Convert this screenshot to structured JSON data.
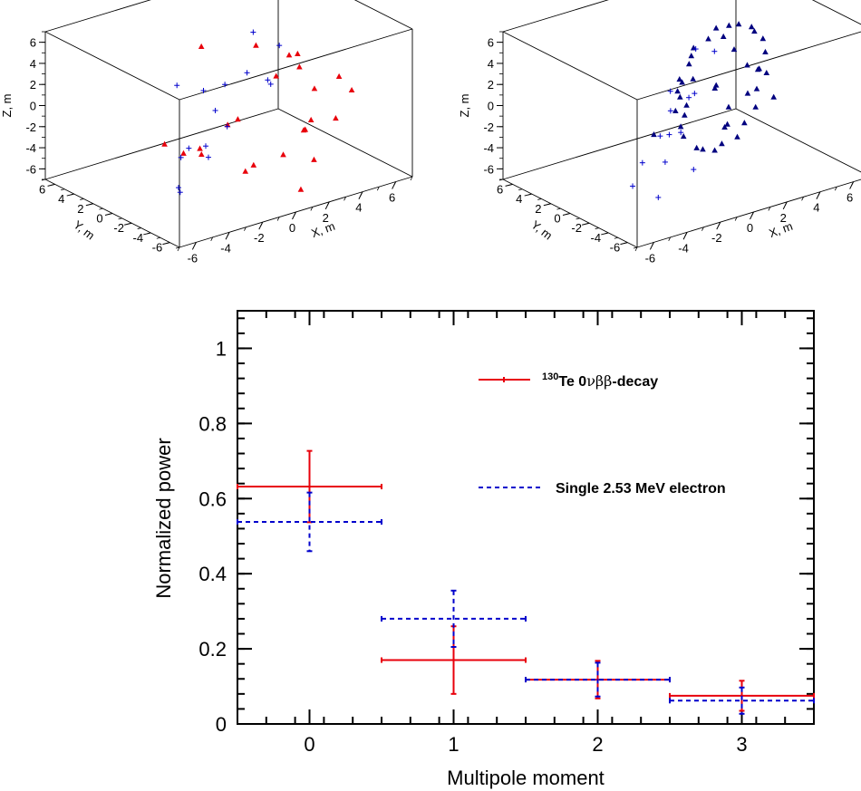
{
  "chart_data": [
    {
      "type": "scatter",
      "projection": "3d",
      "xlabel": "X, m",
      "ylabel": "Y, m",
      "zlabel": "Z, m",
      "xlim": [
        -7,
        7
      ],
      "ylim": [
        -7,
        7
      ],
      "zlim": [
        -7,
        7
      ],
      "xticks": [
        "-6",
        "-4",
        "-2",
        "0",
        "2",
        "4",
        "6"
      ],
      "yticks": [
        "6",
        "4",
        "2",
        "0",
        "-2",
        "-4",
        "-6"
      ],
      "zticks": [
        "6",
        "4",
        "2",
        "0",
        "-2",
        "-4",
        "-6"
      ],
      "series": [
        {
          "marker": "triangle",
          "color": "#e8000b",
          "points": [
            [
              0.5,
              -6.5,
              6.3
            ],
            [
              -0.9,
              -6.5,
              6.1
            ],
            [
              3.4,
              -5.6,
              3.6
            ],
            [
              -2.8,
              -5.8,
              2.6
            ],
            [
              2.9,
              -3.9,
              1.9
            ],
            [
              5.6,
              -3.1,
              0.1
            ],
            [
              -1.8,
              -3.0,
              0.3
            ],
            [
              1.4,
              -0.4,
              5.1
            ],
            [
              -0.5,
              2.0,
              4.8
            ],
            [
              4.2,
              1.0,
              2.2
            ],
            [
              -4.9,
              -1.8,
              -0.6
            ],
            [
              5.4,
              2.2,
              1.2
            ],
            [
              0.7,
              -6.3,
              -5.5
            ],
            [
              -2.0,
              -5.2,
              -3.0
            ],
            [
              2.7,
              -4.2,
              -4.6
            ],
            [
              3.5,
              -2.5,
              -2.0
            ],
            [
              -3.3,
              -1.0,
              -2.6
            ],
            [
              5.1,
              -2.3,
              -2.7
            ],
            [
              1.2,
              -0.5,
              -6.1
            ],
            [
              -1.3,
              0.6,
              -4.4
            ],
            [
              4.5,
              0.0,
              -4.6
            ],
            [
              -0.3,
              2.5,
              -5.2
            ],
            [
              3.9,
              -1.2,
              -3.7
            ],
            [
              1.6,
              -2.9,
              -4.2
            ]
          ]
        },
        {
          "marker": "plus",
          "color": "#0000cc",
          "points": [
            [
              -4.5,
              -6.4,
              4.5
            ],
            [
              -5.4,
              -5.2,
              0.8
            ],
            [
              -3.3,
              -3.6,
              -1.8
            ],
            [
              -2.6,
              -4.1,
              5.0
            ],
            [
              -5.0,
              -3.6,
              -4.3
            ],
            [
              2.5,
              1.8,
              4.8
            ],
            [
              4.3,
              2.2,
              2.5
            ],
            [
              3.8,
              4.7,
              -1.0
            ],
            [
              -2.2,
              1.6,
              2.1
            ],
            [
              1.7,
              5.6,
              -2.1
            ],
            [
              -3.8,
              -1.6,
              -2.5
            ],
            [
              -5.5,
              -4.3,
              -3.3
            ],
            [
              1.8,
              3.3,
              -4.5
            ],
            [
              0.8,
              3.8,
              -6.1
            ],
            [
              5.8,
              5.7,
              -3.5
            ],
            [
              1.3,
              -1.8,
              2.5
            ]
          ]
        }
      ]
    },
    {
      "type": "scatter",
      "projection": "3d",
      "xlabel": "X, m",
      "ylabel": "Y, m",
      "zlabel": "Z, m",
      "xlim": [
        -7,
        7
      ],
      "ylim": [
        -7,
        7
      ],
      "zlim": [
        -7,
        7
      ],
      "xticks": [
        "-6",
        "-4",
        "-2",
        "0",
        "2",
        "4",
        "6"
      ],
      "yticks": [
        "6",
        "4",
        "2",
        "0",
        "-2",
        "-4",
        "-6"
      ],
      "zticks": [
        "6",
        "4",
        "2",
        "0",
        "-2",
        "-4",
        "-6"
      ],
      "series": [
        {
          "marker": "triangle",
          "color": "#00007f",
          "points": [
            [
              4.0,
              1.5,
              5.0
            ],
            [
              4.6,
              1.2,
              4.6
            ],
            [
              5.0,
              1.6,
              3.8
            ],
            [
              5.4,
              1.4,
              3.0
            ],
            [
              5.6,
              1.5,
              1.6
            ],
            [
              5.5,
              1.2,
              -0.2
            ],
            [
              5.2,
              1.7,
              -1.8
            ],
            [
              4.9,
              1.3,
              -3.2
            ],
            [
              4.4,
              1.6,
              -4.6
            ],
            [
              3.8,
              1.3,
              -5.5
            ],
            [
              3.1,
              1.7,
              -6.0
            ],
            [
              2.5,
              1.4,
              -6.2
            ],
            [
              1.9,
              1.6,
              -5.9
            ],
            [
              1.3,
              1.2,
              -5.3
            ],
            [
              0.8,
              1.7,
              -4.2
            ],
            [
              0.4,
              1.3,
              -2.9
            ],
            [
              0.2,
              1.5,
              -1.4
            ],
            [
              0.3,
              1.2,
              0.0
            ],
            [
              0.5,
              1.6,
              1.4
            ],
            [
              0.9,
              1.3,
              2.8
            ],
            [
              1.4,
              1.7,
              3.9
            ],
            [
              2.0,
              1.2,
              4.7
            ],
            [
              2.7,
              1.6,
              5.2
            ],
            [
              3.3,
              1.3,
              5.3
            ],
            [
              4.3,
              2.5,
              2.0
            ],
            [
              4.8,
              2.0,
              0.5
            ],
            [
              5.9,
              2.8,
              -0.8
            ],
            [
              5.0,
              2.3,
              -2.4
            ],
            [
              4.2,
              2.9,
              -3.6
            ],
            [
              3.5,
              2.1,
              -4.8
            ],
            [
              1.5,
              2.6,
              -2.0
            ],
            [
              1.0,
              2.2,
              0.6
            ],
            [
              1.9,
              2.8,
              2.4
            ],
            [
              3.6,
              2.4,
              3.6
            ],
            [
              2.8,
              0.6,
              -3.5
            ],
            [
              4.6,
              0.4,
              1.0
            ],
            [
              -1.5,
              -2.4,
              0.8
            ],
            [
              -3.0,
              -1.8,
              -0.6
            ],
            [
              -0.3,
              -1.2,
              3.1
            ],
            [
              5.7,
              0.8,
              -2.4
            ],
            [
              2.3,
              0.9,
              0.3
            ],
            [
              -1.0,
              -0.8,
              2.1
            ],
            [
              3.2,
              2.6,
              -1.2
            ]
          ]
        },
        {
          "marker": "plus",
          "color": "#0000cc",
          "points": [
            [
              -4.3,
              -5.8,
              4.1
            ],
            [
              -3.8,
              -6.0,
              1.9
            ],
            [
              -5.3,
              -4.6,
              -0.9
            ],
            [
              -5.6,
              -4.1,
              -3.2
            ],
            [
              -3.3,
              -3.5,
              -2.3
            ],
            [
              -3.6,
              -3.3,
              -5.6
            ],
            [
              -2.7,
              -3.0,
              3.9
            ],
            [
              -1.3,
              -2.5,
              2.4
            ],
            [
              -1.5,
              -0.8,
              -1.8
            ],
            [
              -0.9,
              -2.3,
              -4.7
            ],
            [
              -3.2,
              -2.8,
              -0.2
            ],
            [
              2.8,
              3.9,
              2.1
            ],
            [
              4.5,
              4.9,
              0.6
            ],
            [
              2.9,
              4.2,
              -2.3
            ]
          ]
        }
      ]
    },
    {
      "type": "errorbar",
      "xlabel": "Multipole moment",
      "ylabel": "Normalized power",
      "xlim": [
        -0.5,
        3.5
      ],
      "ylim": [
        0,
        1.1
      ],
      "xticks": [
        0,
        1,
        2,
        3
      ],
      "yticks": [
        0,
        0.2,
        0.4,
        0.6,
        0.8,
        1
      ],
      "ytick_labels": [
        "0",
        "0.2",
        "0.4",
        "0.6",
        "0.8",
        "1"
      ],
      "xtick_labels": [
        "0",
        "1",
        "2",
        "3"
      ],
      "series": [
        {
          "legend_prefix": "130",
          "legend_main": "Te 0",
          "legend_greek": "νββ",
          "legend_suffix": "-decay",
          "color": "#e8000b",
          "style": "solid",
          "points": [
            {
              "x": 0,
              "y": 0.632,
              "yerr_lo": 0.095,
              "yerr_hi": 0.095
            },
            {
              "x": 1,
              "y": 0.17,
              "yerr_lo": 0.09,
              "yerr_hi": 0.09
            },
            {
              "x": 2,
              "y": 0.118,
              "yerr_lo": 0.05,
              "yerr_hi": 0.05
            },
            {
              "x": 3,
              "y": 0.075,
              "yerr_lo": 0.04,
              "yerr_hi": 0.04
            }
          ]
        },
        {
          "legend_main": "Single 2.53 MeV electron",
          "color": "#0000cc",
          "style": "dashed",
          "points": [
            {
              "x": 0,
              "y": 0.538,
              "yerr_lo": 0.078,
              "yerr_hi": 0.078
            },
            {
              "x": 1,
              "y": 0.28,
              "yerr_lo": 0.075,
              "yerr_hi": 0.075
            },
            {
              "x": 2,
              "y": 0.118,
              "yerr_lo": 0.045,
              "yerr_hi": 0.045
            },
            {
              "x": 3,
              "y": 0.062,
              "yerr_lo": 0.035,
              "yerr_hi": 0.035
            }
          ]
        }
      ]
    }
  ]
}
